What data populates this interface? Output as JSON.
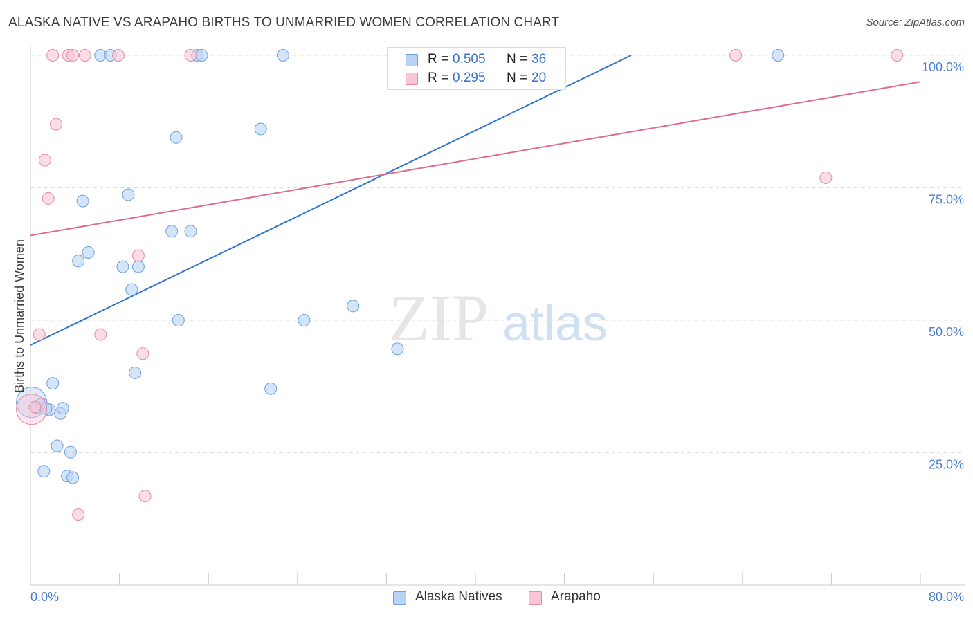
{
  "title": "ALASKA NATIVE VS ARAPAHO BIRTHS TO UNMARRIED WOMEN CORRELATION CHART",
  "source": "Source: ZipAtlas.com",
  "watermark": {
    "zip": "ZIP",
    "atlas": "atlas"
  },
  "colors": {
    "blue_fill": "#b8d3f5",
    "blue_stroke": "#6f9fdc",
    "blue_line": "#2f74d0",
    "pink_fill": "#f8c6d4",
    "pink_stroke": "#e68aa6",
    "pink_line": "#e06a92",
    "tick_text": "#4a7fd0",
    "grid": "#dddddd"
  },
  "legend": {
    "rows": [
      {
        "r_label": "R =",
        "r_value": "0.505",
        "n_label": "N =",
        "n_value": "36"
      },
      {
        "r_label": "R =",
        "r_value": "0.295",
        "n_label": "N =",
        "n_value": "20"
      }
    ]
  },
  "bottom_legend": {
    "series1": "Alaska Natives",
    "series2": "Arapaho"
  },
  "chart_data": {
    "type": "scatter",
    "title": "ALASKA NATIVE VS ARAPAHO BIRTHS TO UNMARRIED WOMEN CORRELATION CHART",
    "xlabel": "",
    "ylabel": "Births to Unmarried Women",
    "xlim": [
      0,
      80
    ],
    "ylim": [
      0,
      100
    ],
    "x_tick_labels": [
      "0.0%",
      "80.0%"
    ],
    "y_tick_values": [
      25,
      50,
      75,
      100
    ],
    "y_tick_labels": [
      "25.0%",
      "50.0%",
      "75.0%",
      "100.0%"
    ],
    "grid": true,
    "series": [
      {
        "name": "Alaska Natives",
        "color": "#b8d3f5",
        "r": 0.505,
        "n": 36,
        "trend": {
          "x": [
            0,
            54
          ],
          "y": [
            45.3,
            100
          ]
        },
        "points": [
          {
            "x": 0.1,
            "y": 34.5,
            "big": true
          },
          {
            "x": 0.6,
            "y": 33.5
          },
          {
            "x": 1.0,
            "y": 34.2
          },
          {
            "x": 1.2,
            "y": 21.5
          },
          {
            "x": 1.7,
            "y": 33.1
          },
          {
            "x": 2.0,
            "y": 38.1
          },
          {
            "x": 2.4,
            "y": 26.3
          },
          {
            "x": 2.7,
            "y": 32.4
          },
          {
            "x": 2.9,
            "y": 33.4
          },
          {
            "x": 3.3,
            "y": 20.6
          },
          {
            "x": 3.6,
            "y": 25.1
          },
          {
            "x": 3.8,
            "y": 20.3
          },
          {
            "x": 4.3,
            "y": 61.2
          },
          {
            "x": 4.7,
            "y": 72.5
          },
          {
            "x": 5.2,
            "y": 62.8
          },
          {
            "x": 6.3,
            "y": 100
          },
          {
            "x": 7.2,
            "y": 100
          },
          {
            "x": 8.3,
            "y": 60.1
          },
          {
            "x": 8.8,
            "y": 73.7
          },
          {
            "x": 9.1,
            "y": 55.8
          },
          {
            "x": 9.4,
            "y": 40.1
          },
          {
            "x": 9.7,
            "y": 60.1
          },
          {
            "x": 12.7,
            "y": 66.8
          },
          {
            "x": 13.1,
            "y": 84.5
          },
          {
            "x": 13.3,
            "y": 50.0
          },
          {
            "x": 14.4,
            "y": 66.8
          },
          {
            "x": 15.0,
            "y": 100
          },
          {
            "x": 15.4,
            "y": 100
          },
          {
            "x": 20.7,
            "y": 86.1
          },
          {
            "x": 21.6,
            "y": 37.1
          },
          {
            "x": 22.7,
            "y": 100
          },
          {
            "x": 24.6,
            "y": 50.0
          },
          {
            "x": 29.0,
            "y": 52.7
          },
          {
            "x": 33.0,
            "y": 44.6
          },
          {
            "x": 67.2,
            "y": 100
          },
          {
            "x": 1.4,
            "y": 33.3
          }
        ]
      },
      {
        "name": "Arapaho",
        "color": "#f8c6d4",
        "r": 0.295,
        "n": 20,
        "trend": {
          "x": [
            0,
            80
          ],
          "y": [
            66,
            95
          ]
        },
        "points": [
          {
            "x": 0.1,
            "y": 33.2,
            "big": true
          },
          {
            "x": 0.8,
            "y": 47.3
          },
          {
            "x": 1.3,
            "y": 80.2
          },
          {
            "x": 1.6,
            "y": 73.0
          },
          {
            "x": 2.0,
            "y": 100
          },
          {
            "x": 2.3,
            "y": 87.0
          },
          {
            "x": 3.4,
            "y": 100
          },
          {
            "x": 3.8,
            "y": 100
          },
          {
            "x": 4.3,
            "y": 13.3
          },
          {
            "x": 4.9,
            "y": 100
          },
          {
            "x": 6.3,
            "y": 47.3
          },
          {
            "x": 7.9,
            "y": 100
          },
          {
            "x": 9.7,
            "y": 62.2
          },
          {
            "x": 10.1,
            "y": 43.7
          },
          {
            "x": 10.3,
            "y": 16.8
          },
          {
            "x": 14.4,
            "y": 100
          },
          {
            "x": 63.4,
            "y": 100
          },
          {
            "x": 71.5,
            "y": 76.9
          },
          {
            "x": 77.9,
            "y": 100
          },
          {
            "x": 0.4,
            "y": 33.6
          }
        ]
      }
    ]
  }
}
